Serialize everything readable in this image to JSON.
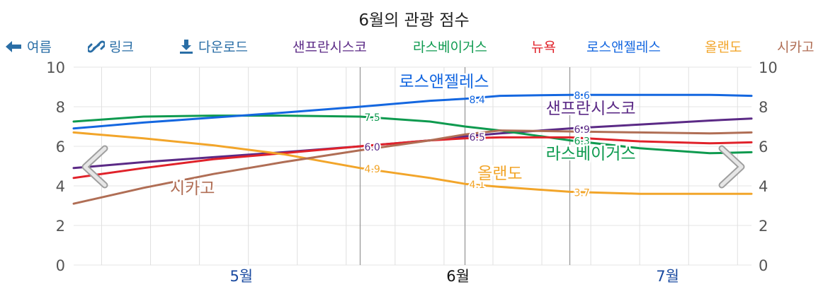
{
  "title": "6월의 관광 점수",
  "toolbar": {
    "back_label": "여름",
    "link_label": "링크",
    "download_label": "다운로드"
  },
  "colors": {
    "toolbar": "#2a6ea6",
    "san_francisco": "#5b2a86",
    "las_vegas": "#0e9a4f",
    "new_york": "#e0222a",
    "los_angeles": "#1467e0",
    "orlando": "#f2a52a",
    "chicago": "#b06e55"
  },
  "chart_data": {
    "type": "line",
    "title": "6월의 관광 점수",
    "ylim": [
      0,
      10
    ],
    "yticks": [
      "0",
      "2",
      "4",
      "6",
      "8",
      "10"
    ],
    "ytick_values": [
      0,
      2,
      4,
      6,
      8,
      10
    ],
    "xlim": [
      "2024-04-21",
      "2024-07-27"
    ],
    "month_labels": [
      {
        "date": "2024-05-15",
        "label": "5월"
      },
      {
        "date": "2024-06-15",
        "label": "6월"
      },
      {
        "date": "2024-07-15",
        "label": "7월"
      }
    ],
    "highlighted_month": "6월",
    "marker_dates": [
      "2024-06-01",
      "2024-06-16",
      "2024-07-01"
    ],
    "grid": true,
    "series": [
      {
        "name": "샌프란시스코",
        "color_key": "san_francisco",
        "points": [
          [
            "2024-04-21",
            4.9
          ],
          [
            "2024-05-01",
            5.2
          ],
          [
            "2024-05-11",
            5.45
          ],
          [
            "2024-05-21",
            5.7
          ],
          [
            "2024-06-01",
            6.0
          ],
          [
            "2024-06-11",
            6.3
          ],
          [
            "2024-06-16",
            6.5
          ],
          [
            "2024-06-21",
            6.65
          ],
          [
            "2024-07-01",
            6.9
          ],
          [
            "2024-07-11",
            7.1
          ],
          [
            "2024-07-21",
            7.3
          ],
          [
            "2024-07-27",
            7.4
          ]
        ],
        "labels": [
          {
            "date": "2024-06-01",
            "value": "6.0"
          },
          {
            "date": "2024-06-16",
            "value": "6.5"
          },
          {
            "date": "2024-07-01",
            "value": "6.9"
          }
        ],
        "name_label_at": [
          "2024-07-04",
          7.65
        ]
      },
      {
        "name": "라스베이거스",
        "color_key": "las_vegas",
        "points": [
          [
            "2024-04-21",
            7.25
          ],
          [
            "2024-05-01",
            7.5
          ],
          [
            "2024-05-11",
            7.55
          ],
          [
            "2024-05-21",
            7.55
          ],
          [
            "2024-06-01",
            7.5
          ],
          [
            "2024-06-11",
            7.25
          ],
          [
            "2024-06-16",
            7.0
          ],
          [
            "2024-06-21",
            6.8
          ],
          [
            "2024-07-01",
            6.3
          ],
          [
            "2024-07-11",
            5.9
          ],
          [
            "2024-07-21",
            5.65
          ],
          [
            "2024-07-27",
            5.7
          ]
        ],
        "labels": [
          {
            "date": "2024-06-01",
            "value": "7.5"
          },
          {
            "date": "2024-07-01",
            "value": "6.3"
          }
        ],
        "name_label_at": [
          "2024-07-04",
          5.35
        ]
      },
      {
        "name": "뉴욕",
        "color_key": "new_york",
        "points": [
          [
            "2024-04-21",
            4.4
          ],
          [
            "2024-05-01",
            4.9
          ],
          [
            "2024-05-11",
            5.35
          ],
          [
            "2024-05-21",
            5.65
          ],
          [
            "2024-06-01",
            6.0
          ],
          [
            "2024-06-11",
            6.3
          ],
          [
            "2024-06-16",
            6.4
          ],
          [
            "2024-06-21",
            6.45
          ],
          [
            "2024-07-01",
            6.45
          ],
          [
            "2024-07-11",
            6.25
          ],
          [
            "2024-07-21",
            6.15
          ],
          [
            "2024-07-27",
            6.2
          ]
        ],
        "labels": [],
        "name_label_at": null
      },
      {
        "name": "로스앤젤레스",
        "color_key": "los_angeles",
        "points": [
          [
            "2024-04-21",
            6.9
          ],
          [
            "2024-05-01",
            7.2
          ],
          [
            "2024-05-11",
            7.45
          ],
          [
            "2024-05-21",
            7.7
          ],
          [
            "2024-06-01",
            8.0
          ],
          [
            "2024-06-11",
            8.3
          ],
          [
            "2024-06-16",
            8.4
          ],
          [
            "2024-06-21",
            8.55
          ],
          [
            "2024-07-01",
            8.6
          ],
          [
            "2024-07-11",
            8.6
          ],
          [
            "2024-07-21",
            8.6
          ],
          [
            "2024-07-27",
            8.55
          ]
        ],
        "labels": [
          {
            "date": "2024-06-16",
            "value": "8.4"
          },
          {
            "date": "2024-07-01",
            "value": "8.6"
          }
        ],
        "name_label_at": [
          "2024-06-13",
          9.0
        ]
      },
      {
        "name": "올랜도",
        "color_key": "orlando",
        "points": [
          [
            "2024-04-21",
            6.7
          ],
          [
            "2024-05-01",
            6.4
          ],
          [
            "2024-05-11",
            6.05
          ],
          [
            "2024-05-21",
            5.6
          ],
          [
            "2024-06-01",
            4.9
          ],
          [
            "2024-06-11",
            4.4
          ],
          [
            "2024-06-16",
            4.1
          ],
          [
            "2024-06-21",
            3.95
          ],
          [
            "2024-07-01",
            3.7
          ],
          [
            "2024-07-11",
            3.6
          ],
          [
            "2024-07-21",
            3.6
          ],
          [
            "2024-07-27",
            3.6
          ]
        ],
        "labels": [
          {
            "date": "2024-06-01",
            "value": "4.9"
          },
          {
            "date": "2024-06-16",
            "value": "4.1"
          },
          {
            "date": "2024-07-01",
            "value": "3.7"
          }
        ],
        "name_label_at": [
          "2024-06-21",
          4.35
        ]
      },
      {
        "name": "시카고",
        "color_key": "chicago",
        "points": [
          [
            "2024-04-21",
            3.1
          ],
          [
            "2024-05-01",
            3.9
          ],
          [
            "2024-05-11",
            4.6
          ],
          [
            "2024-05-21",
            5.2
          ],
          [
            "2024-06-01",
            5.8
          ],
          [
            "2024-06-11",
            6.3
          ],
          [
            "2024-06-16",
            6.6
          ],
          [
            "2024-06-21",
            6.8
          ],
          [
            "2024-07-01",
            6.75
          ],
          [
            "2024-07-11",
            6.7
          ],
          [
            "2024-07-21",
            6.65
          ],
          [
            "2024-07-27",
            6.7
          ]
        ],
        "labels": [],
        "name_label_at": [
          "2024-05-08",
          3.6
        ]
      }
    ]
  }
}
